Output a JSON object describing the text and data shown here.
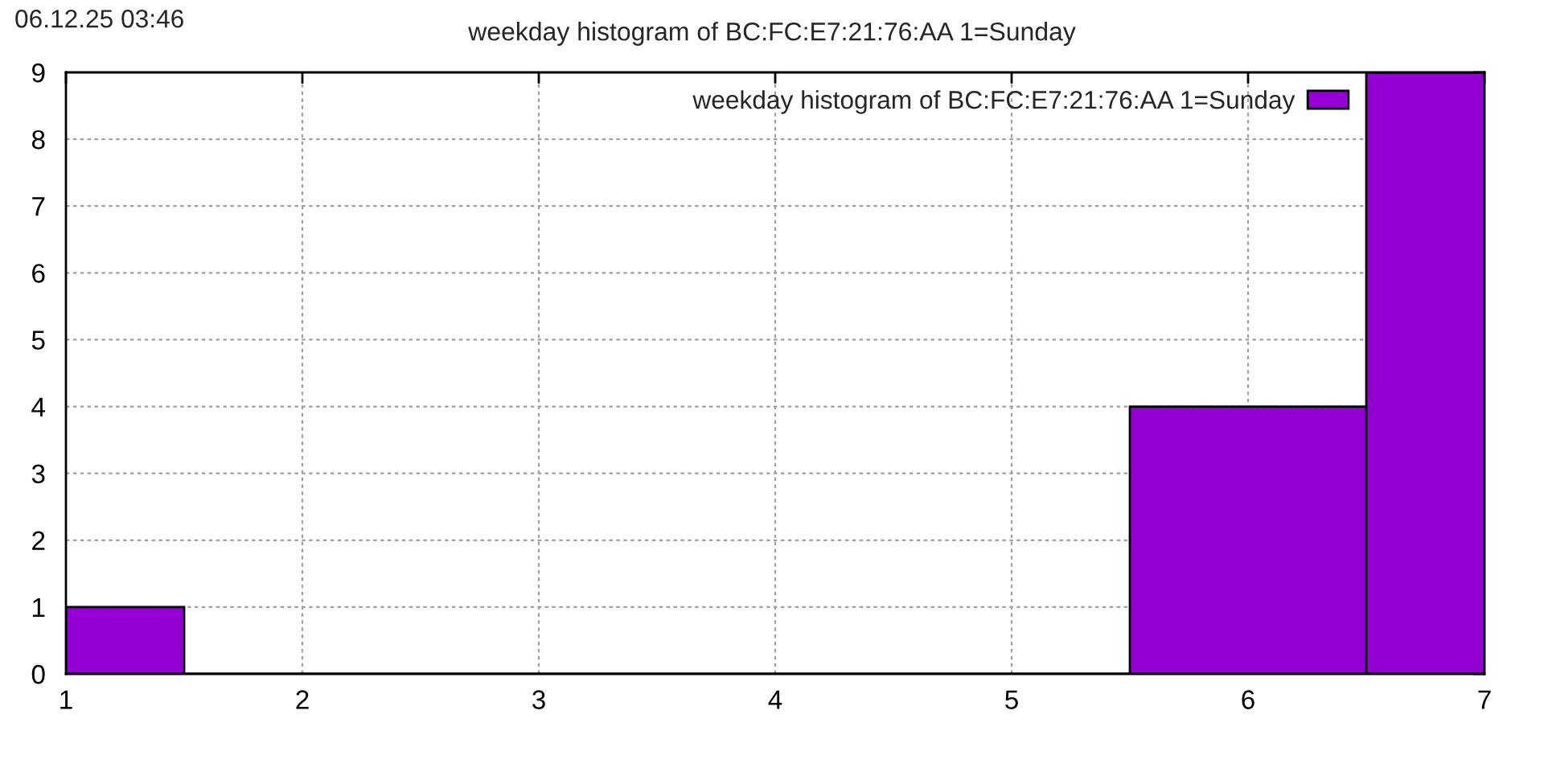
{
  "chart_data": {
    "type": "histogram",
    "title": "weekday histogram of BC:FC:E7:21:76:AA 1=Sunday",
    "annotations": [
      "06.12.25 03:46"
    ],
    "bins": [
      1,
      1.5,
      5.5,
      6.5,
      7
    ],
    "series": [
      {
        "name": "weekday histogram of BC:FC:E7:21:76:AA 1=Sunday",
        "color": "#9400d3",
        "values": [
          1,
          0,
          4,
          9
        ]
      }
    ],
    "xlim": [
      1,
      7
    ],
    "xticks": [
      1,
      2,
      3,
      4,
      5,
      6,
      7
    ],
    "ylim": [
      0,
      9
    ],
    "yticks": [
      0,
      1,
      2,
      3,
      4,
      5,
      6,
      7,
      8,
      9
    ],
    "grid": true,
    "legend": "top right"
  }
}
